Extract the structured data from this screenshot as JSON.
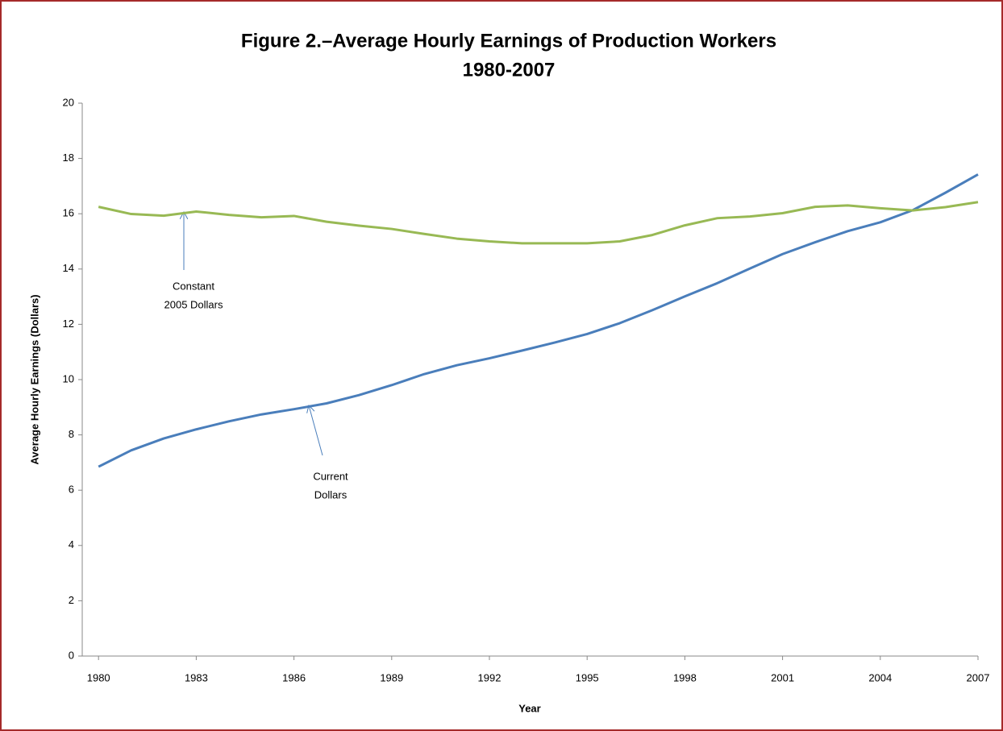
{
  "chart_data": {
    "type": "line",
    "title": [
      "Figure 2.–Average Hourly Earnings of Production Workers",
      "1980-2007"
    ],
    "x_label": "Year",
    "y_label": "Average Hourly Earnings (Dollars)",
    "x": [
      1980,
      1981,
      1982,
      1983,
      1984,
      1985,
      1986,
      1987,
      1988,
      1989,
      1990,
      1991,
      1992,
      1993,
      1994,
      1995,
      1996,
      1997,
      1998,
      1999,
      2000,
      2001,
      2002,
      2003,
      2004,
      2005,
      2006,
      2007
    ],
    "series": [
      {
        "name": "Current Dollars",
        "color": "#4a7ebb",
        "values": [
          6.85,
          7.44,
          7.87,
          8.2,
          8.49,
          8.74,
          8.93,
          9.14,
          9.44,
          9.8,
          10.2,
          10.52,
          10.77,
          11.05,
          11.34,
          11.65,
          12.04,
          12.51,
          13.01,
          13.49,
          14.02,
          14.54,
          14.97,
          15.37,
          15.69,
          16.13,
          16.76,
          17.42
        ]
      },
      {
        "name": "Constant 2005 Dollars",
        "color": "#98b954",
        "values": [
          16.25,
          15.99,
          15.93,
          16.08,
          15.96,
          15.87,
          15.92,
          15.71,
          15.57,
          15.45,
          15.27,
          15.1,
          15.0,
          14.93,
          14.93,
          14.93,
          15.0,
          15.23,
          15.58,
          15.84,
          15.9,
          16.02,
          16.25,
          16.3,
          16.2,
          16.12,
          16.24,
          16.42
        ]
      }
    ],
    "annotations": [
      {
        "text": [
          "Constant",
          "2005 Dollars"
        ]
      },
      {
        "text": [
          "Current",
          "Dollars"
        ]
      }
    ],
    "xlim": [
      1979.5,
      2007
    ],
    "xticks": [
      1980,
      1983,
      1986,
      1989,
      1992,
      1995,
      1998,
      2001,
      2004,
      2007
    ],
    "ylim": [
      0,
      20
    ],
    "yticks": [
      0,
      2,
      4,
      6,
      8,
      10,
      12,
      14,
      16,
      18,
      20
    ]
  }
}
